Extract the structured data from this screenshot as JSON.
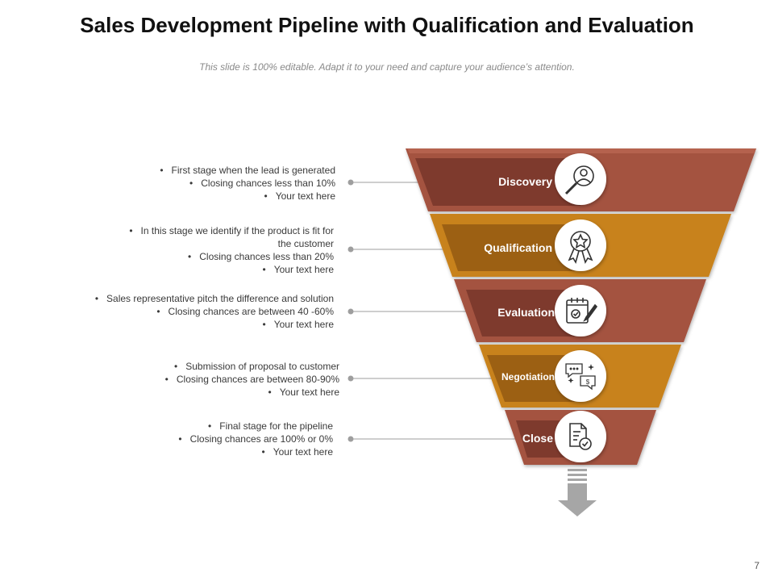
{
  "title": "Sales Development Pipeline with Qualification and Evaluation",
  "subtitle": "This slide is 100% editable. Adapt it to your need and capture your audience’s attention.",
  "page_number": "7",
  "colors": {
    "brown": "#a4523f",
    "brown_dark": "#7e3a2d",
    "gold": "#c8821e",
    "gold_dark": "#9c6013",
    "connector": "#9e9e9e",
    "arrow": "#a6a6a6"
  },
  "stages": [
    {
      "label": "Discovery",
      "icon": "search-user-icon",
      "color": "brown",
      "bullets": [
        "First stage when the lead is generated",
        "Closing chances less than 10%",
        "Your text here"
      ]
    },
    {
      "label": "Qualification",
      "icon": "award-ribbon-icon",
      "color": "gold",
      "bullets": [
        "In this stage we identify if the product is fit for",
        "the customer",
        "Closing chances less than 20%",
        "Your text here"
      ]
    },
    {
      "label": "Evaluation",
      "icon": "checklist-pen-icon",
      "color": "brown",
      "bullets": [
        "Sales representative  pitch the difference  and solution",
        "Closing chances are between 40 -60%",
        "Your text here"
      ]
    },
    {
      "label": "Negotiation",
      "icon": "chat-dollar-icon",
      "color": "gold",
      "bullets": [
        "Submission of proposal to customer",
        "Closing chances are between 80-90%",
        "Your text here"
      ]
    },
    {
      "label": "Close",
      "icon": "document-check-icon",
      "color": "brown",
      "bullets": [
        "Final stage for the pipeline",
        "Closing chances are 100% or 0%",
        "Your text here"
      ]
    }
  ]
}
